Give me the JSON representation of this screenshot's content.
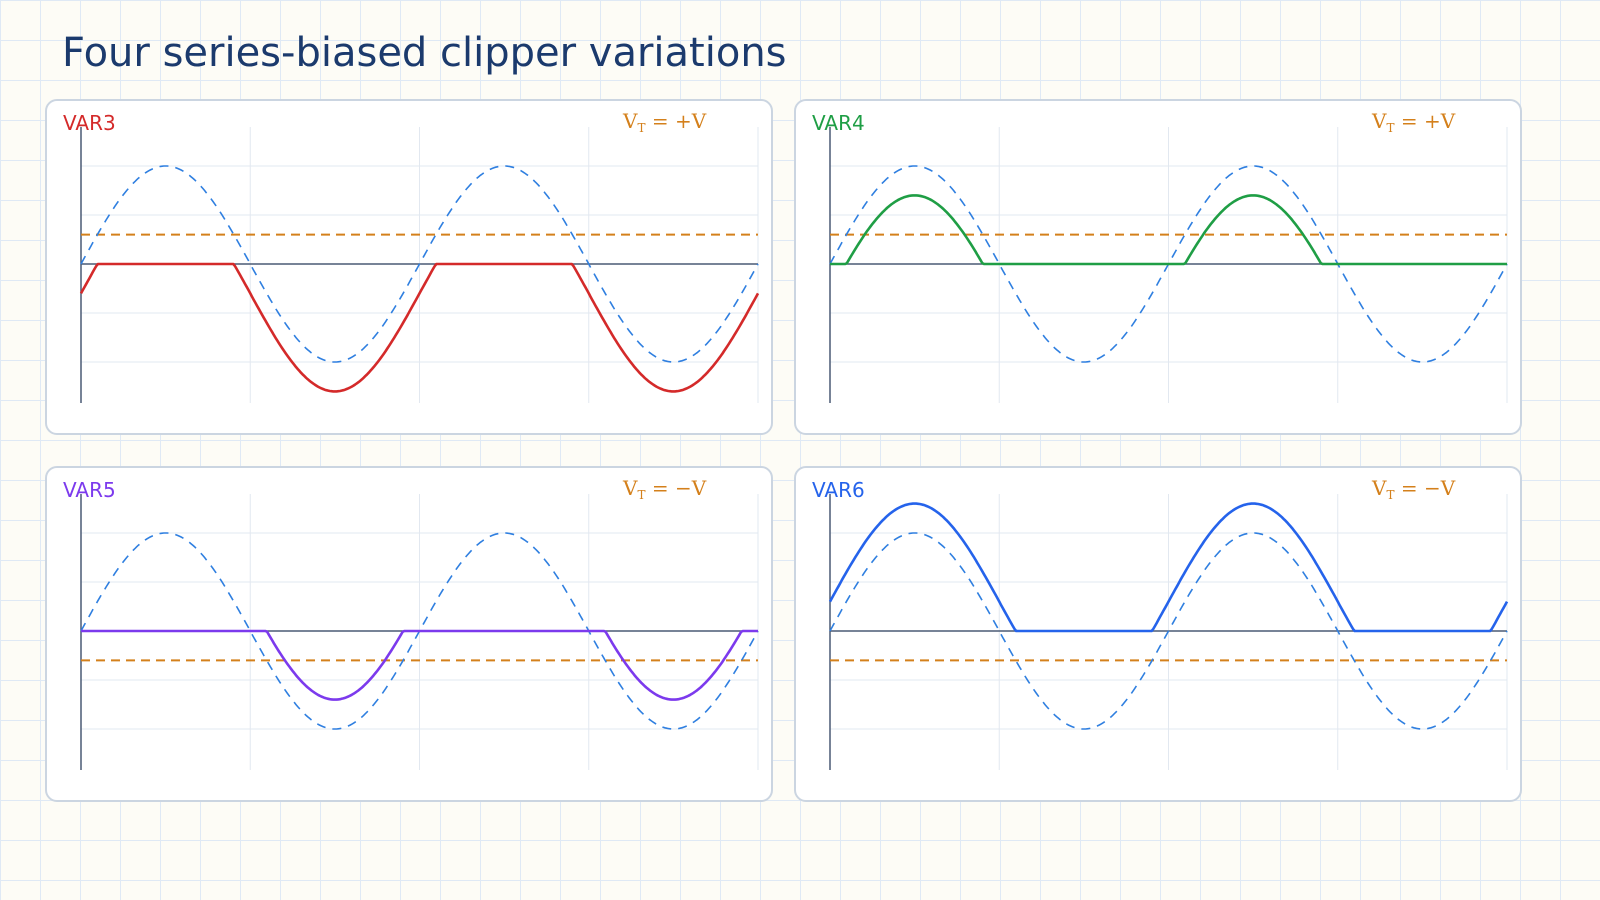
{
  "title": "Four series-biased clipper variations",
  "colors": {
    "input_wave": "#2f7fe0",
    "threshold": "#d4801b",
    "axis": "#4a5a75",
    "grid": "#e2e8f0"
  },
  "panels": [
    {
      "label": "VAR3",
      "color": "#d42a2a",
      "vt": {
        "symbol": "V",
        "sub": "T",
        "rest": " = +V"
      },
      "threshold_level": 0.3,
      "output": {
        "clip": "max",
        "cap": 0.0,
        "shift": -0.3
      }
    },
    {
      "label": "VAR4",
      "color": "#1f9e45",
      "vt": {
        "symbol": "V",
        "sub": "T",
        "rest": " = +V"
      },
      "threshold_level": 0.3,
      "output": {
        "clip": "min",
        "cap": 0.0,
        "shift": -0.3
      }
    },
    {
      "label": "VAR5",
      "color": "#7c3aed",
      "vt": {
        "symbol": "V",
        "sub": "T",
        "rest": " = −V"
      },
      "threshold_level": -0.3,
      "output": {
        "clip": "max",
        "cap": 0.0,
        "shift": 0.3
      }
    },
    {
      "label": "VAR6",
      "color": "#2563eb",
      "vt": {
        "symbol": "V",
        "sub": "T",
        "rest": " = −V"
      },
      "threshold_level": -0.3,
      "output": {
        "clip": "min",
        "cap": 0.0,
        "shift": 0.3
      }
    }
  ]
}
